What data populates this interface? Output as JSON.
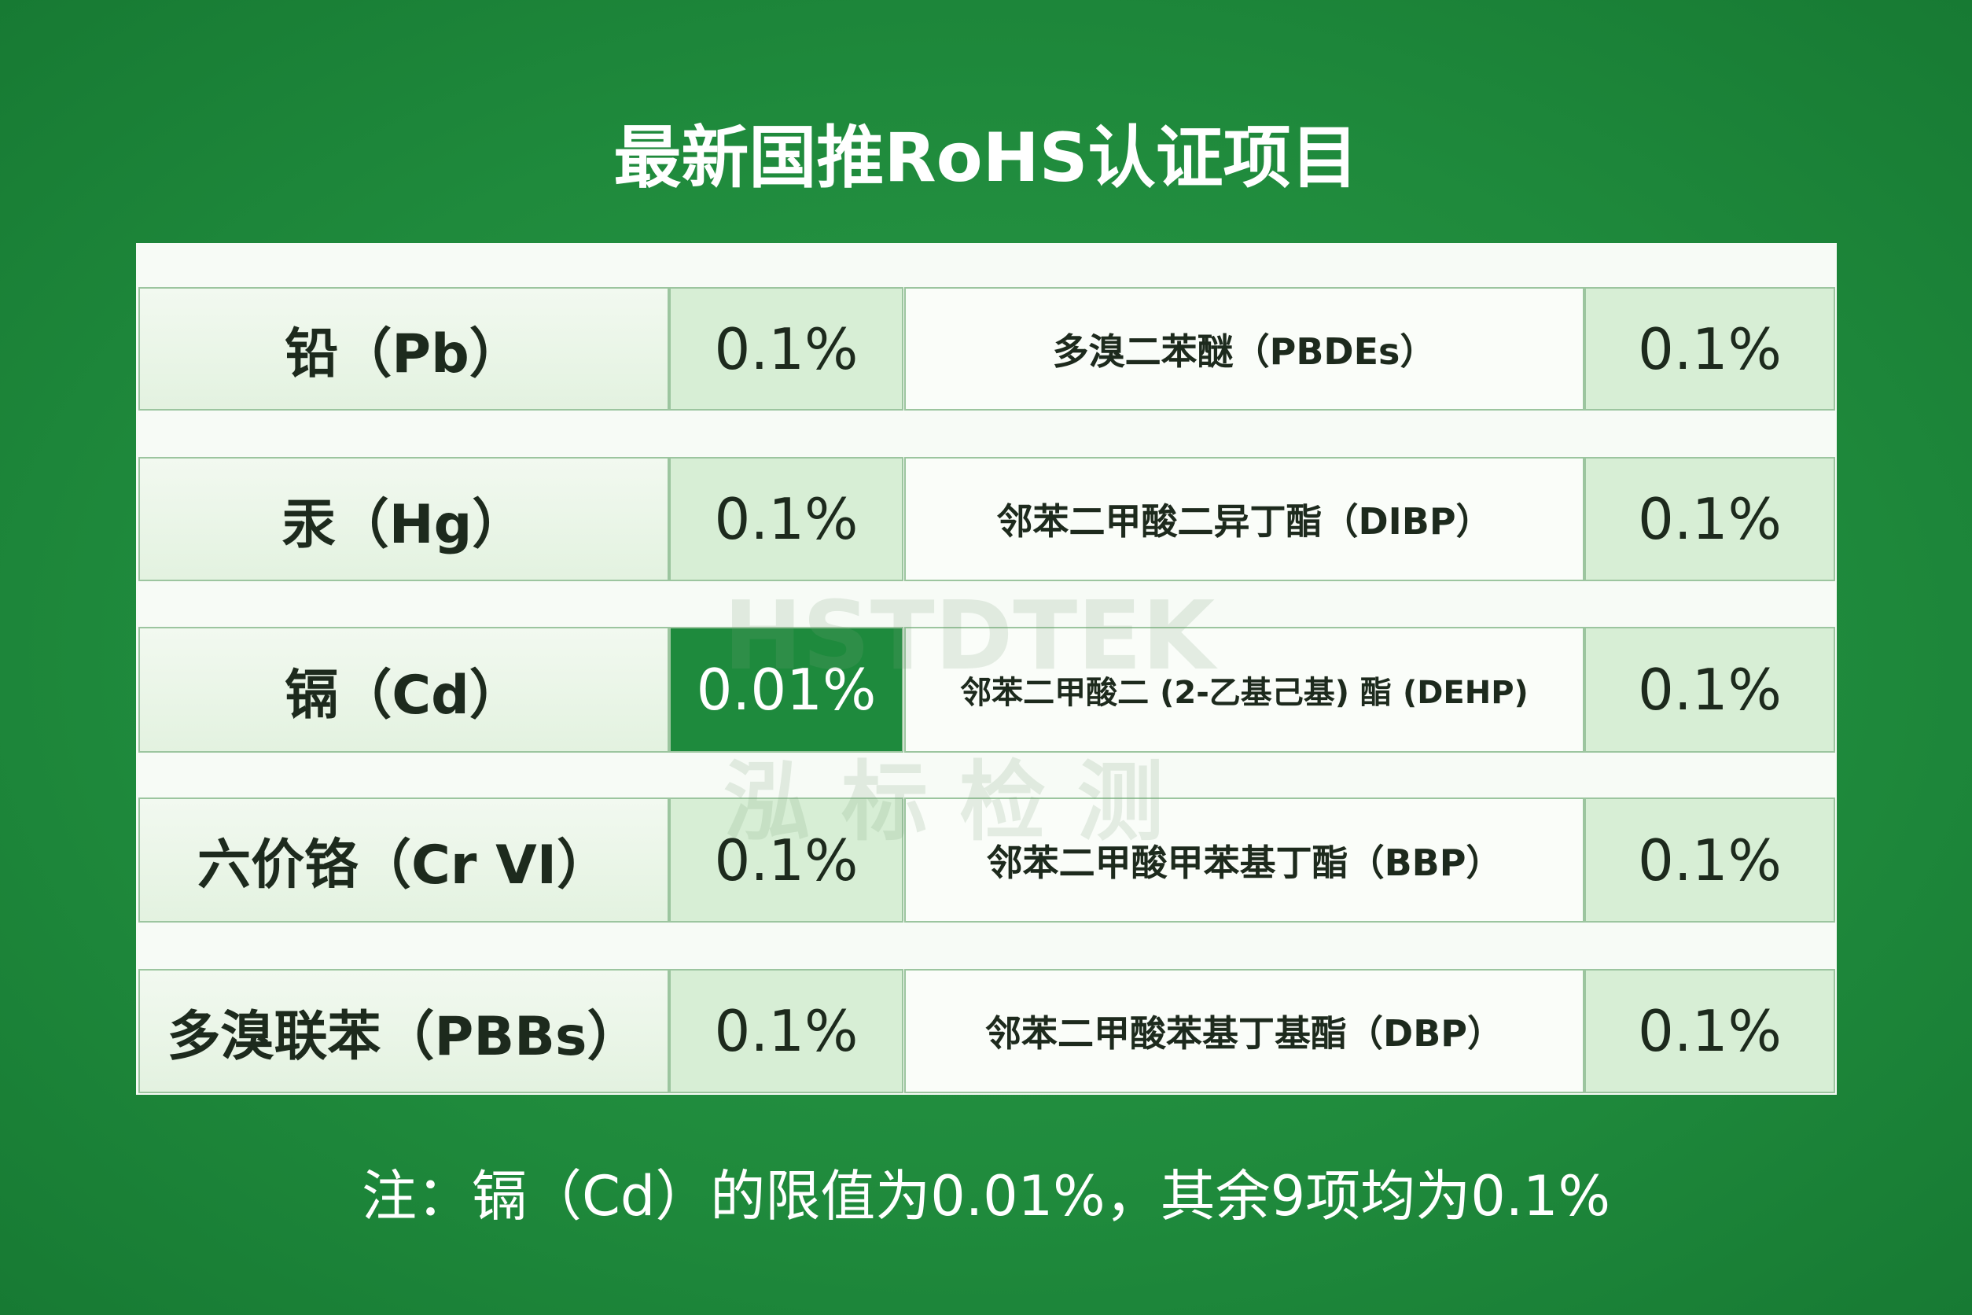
{
  "header": {
    "title": "最新国推RoHS认证项目"
  },
  "table": {
    "rows": [
      [
        "铅（Pb）",
        "0.1%",
        "多溴二苯醚（PBDEs）",
        "0.1%"
      ],
      [
        "汞（Hg）",
        "0.1%",
        "邻苯二甲酸二异丁酯（DIBP）",
        "0.1%"
      ],
      [
        "镉（Cd）",
        "0.01%",
        "邻苯二甲酸二 (2-乙基己基) 酯 (DEHP)",
        "0.1%"
      ],
      [
        "六价铬（Cr VI）",
        "0.1%",
        "邻苯二甲酸甲苯基丁酯（BBP）",
        "0.1%"
      ],
      [
        "多溴联苯（PBBs）",
        "0.1%",
        "邻苯二甲酸苯基丁基酯（DBP）",
        "0.1%"
      ]
    ]
  },
  "watermark": {
    "brand": "HSTDTEK",
    "name": "泓标检测"
  },
  "footer": {
    "note": "注：镉（Cd）的限值为0.01%，其余9项均为0.1%"
  }
}
